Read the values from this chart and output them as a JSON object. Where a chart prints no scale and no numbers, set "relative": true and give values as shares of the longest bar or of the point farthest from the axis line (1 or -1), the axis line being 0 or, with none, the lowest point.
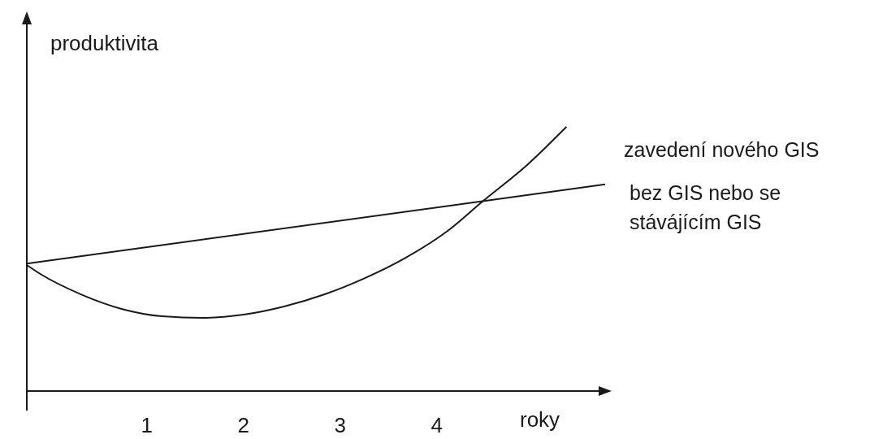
{
  "chart_data": {
    "type": "line",
    "relative": true,
    "xlabel": "roky",
    "ylabel": "produktivita",
    "xlim": [
      -0.24,
      5.74
    ],
    "xticks": [
      1,
      2,
      3,
      4
    ],
    "series": [
      {
        "name": "zavedení nového GIS",
        "color": "#1a1a1a",
        "x": [
          -0.24,
          -0.1,
          0.32,
          0.74,
          1.16,
          1.58,
          2.0,
          2.42,
          2.84,
          3.26,
          3.68,
          4.1,
          4.48,
          4.94,
          5.34
        ],
        "values": [
          0.477,
          0.443,
          0.366,
          0.311,
          0.283,
          0.277,
          0.289,
          0.32,
          0.366,
          0.428,
          0.505,
          0.603,
          0.72,
          0.858,
          1
        ]
      },
      {
        "name": "bez GIS nebo se stávájícím GIS",
        "color": "#1a1a1a",
        "x": [
          -0.24,
          5.74
        ],
        "values": [
          0.482,
          0.782
        ]
      }
    ],
    "marker": "none",
    "line_style": "solid"
  }
}
